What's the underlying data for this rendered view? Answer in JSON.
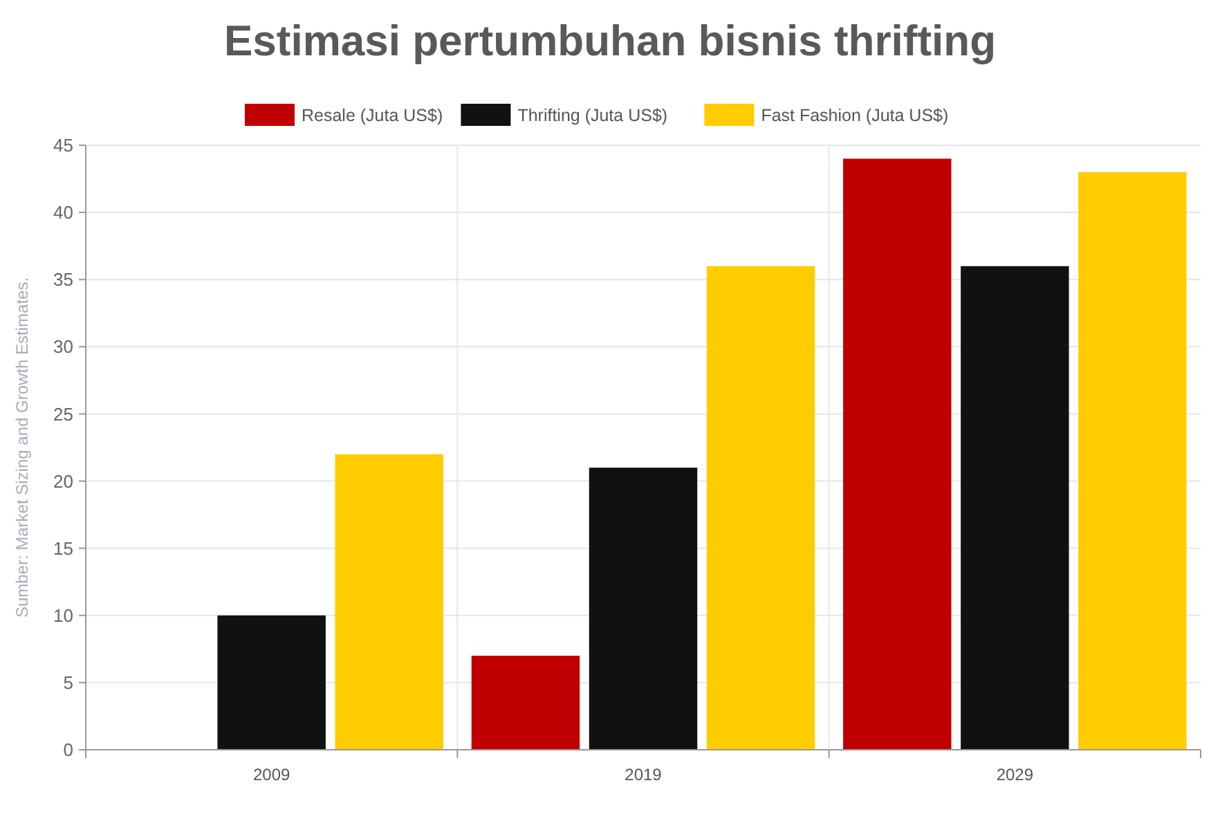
{
  "chart_data": {
    "type": "bar",
    "title": "Estimasi pertumbuhan bisnis thrifting",
    "categories": [
      "2009",
      "2019",
      "2029"
    ],
    "series": [
      {
        "name": "Resale (Juta US$)",
        "color": "#c00000",
        "values": [
          null,
          7,
          44
        ]
      },
      {
        "name": "Thrifting (Juta US$)",
        "color": "#111111",
        "values": [
          10,
          21,
          36
        ]
      },
      {
        "name": "Fast Fashion (Juta US$)",
        "color": "#ffcc00",
        "values": [
          22,
          36,
          43
        ]
      }
    ],
    "ylim": [
      0,
      45
    ],
    "yticks": [
      0,
      5,
      10,
      15,
      20,
      25,
      30,
      35,
      40,
      45
    ],
    "grid": true,
    "legend": "top",
    "annotations": [
      "Sumber: Market Sizing and Growth Estimates."
    ]
  }
}
